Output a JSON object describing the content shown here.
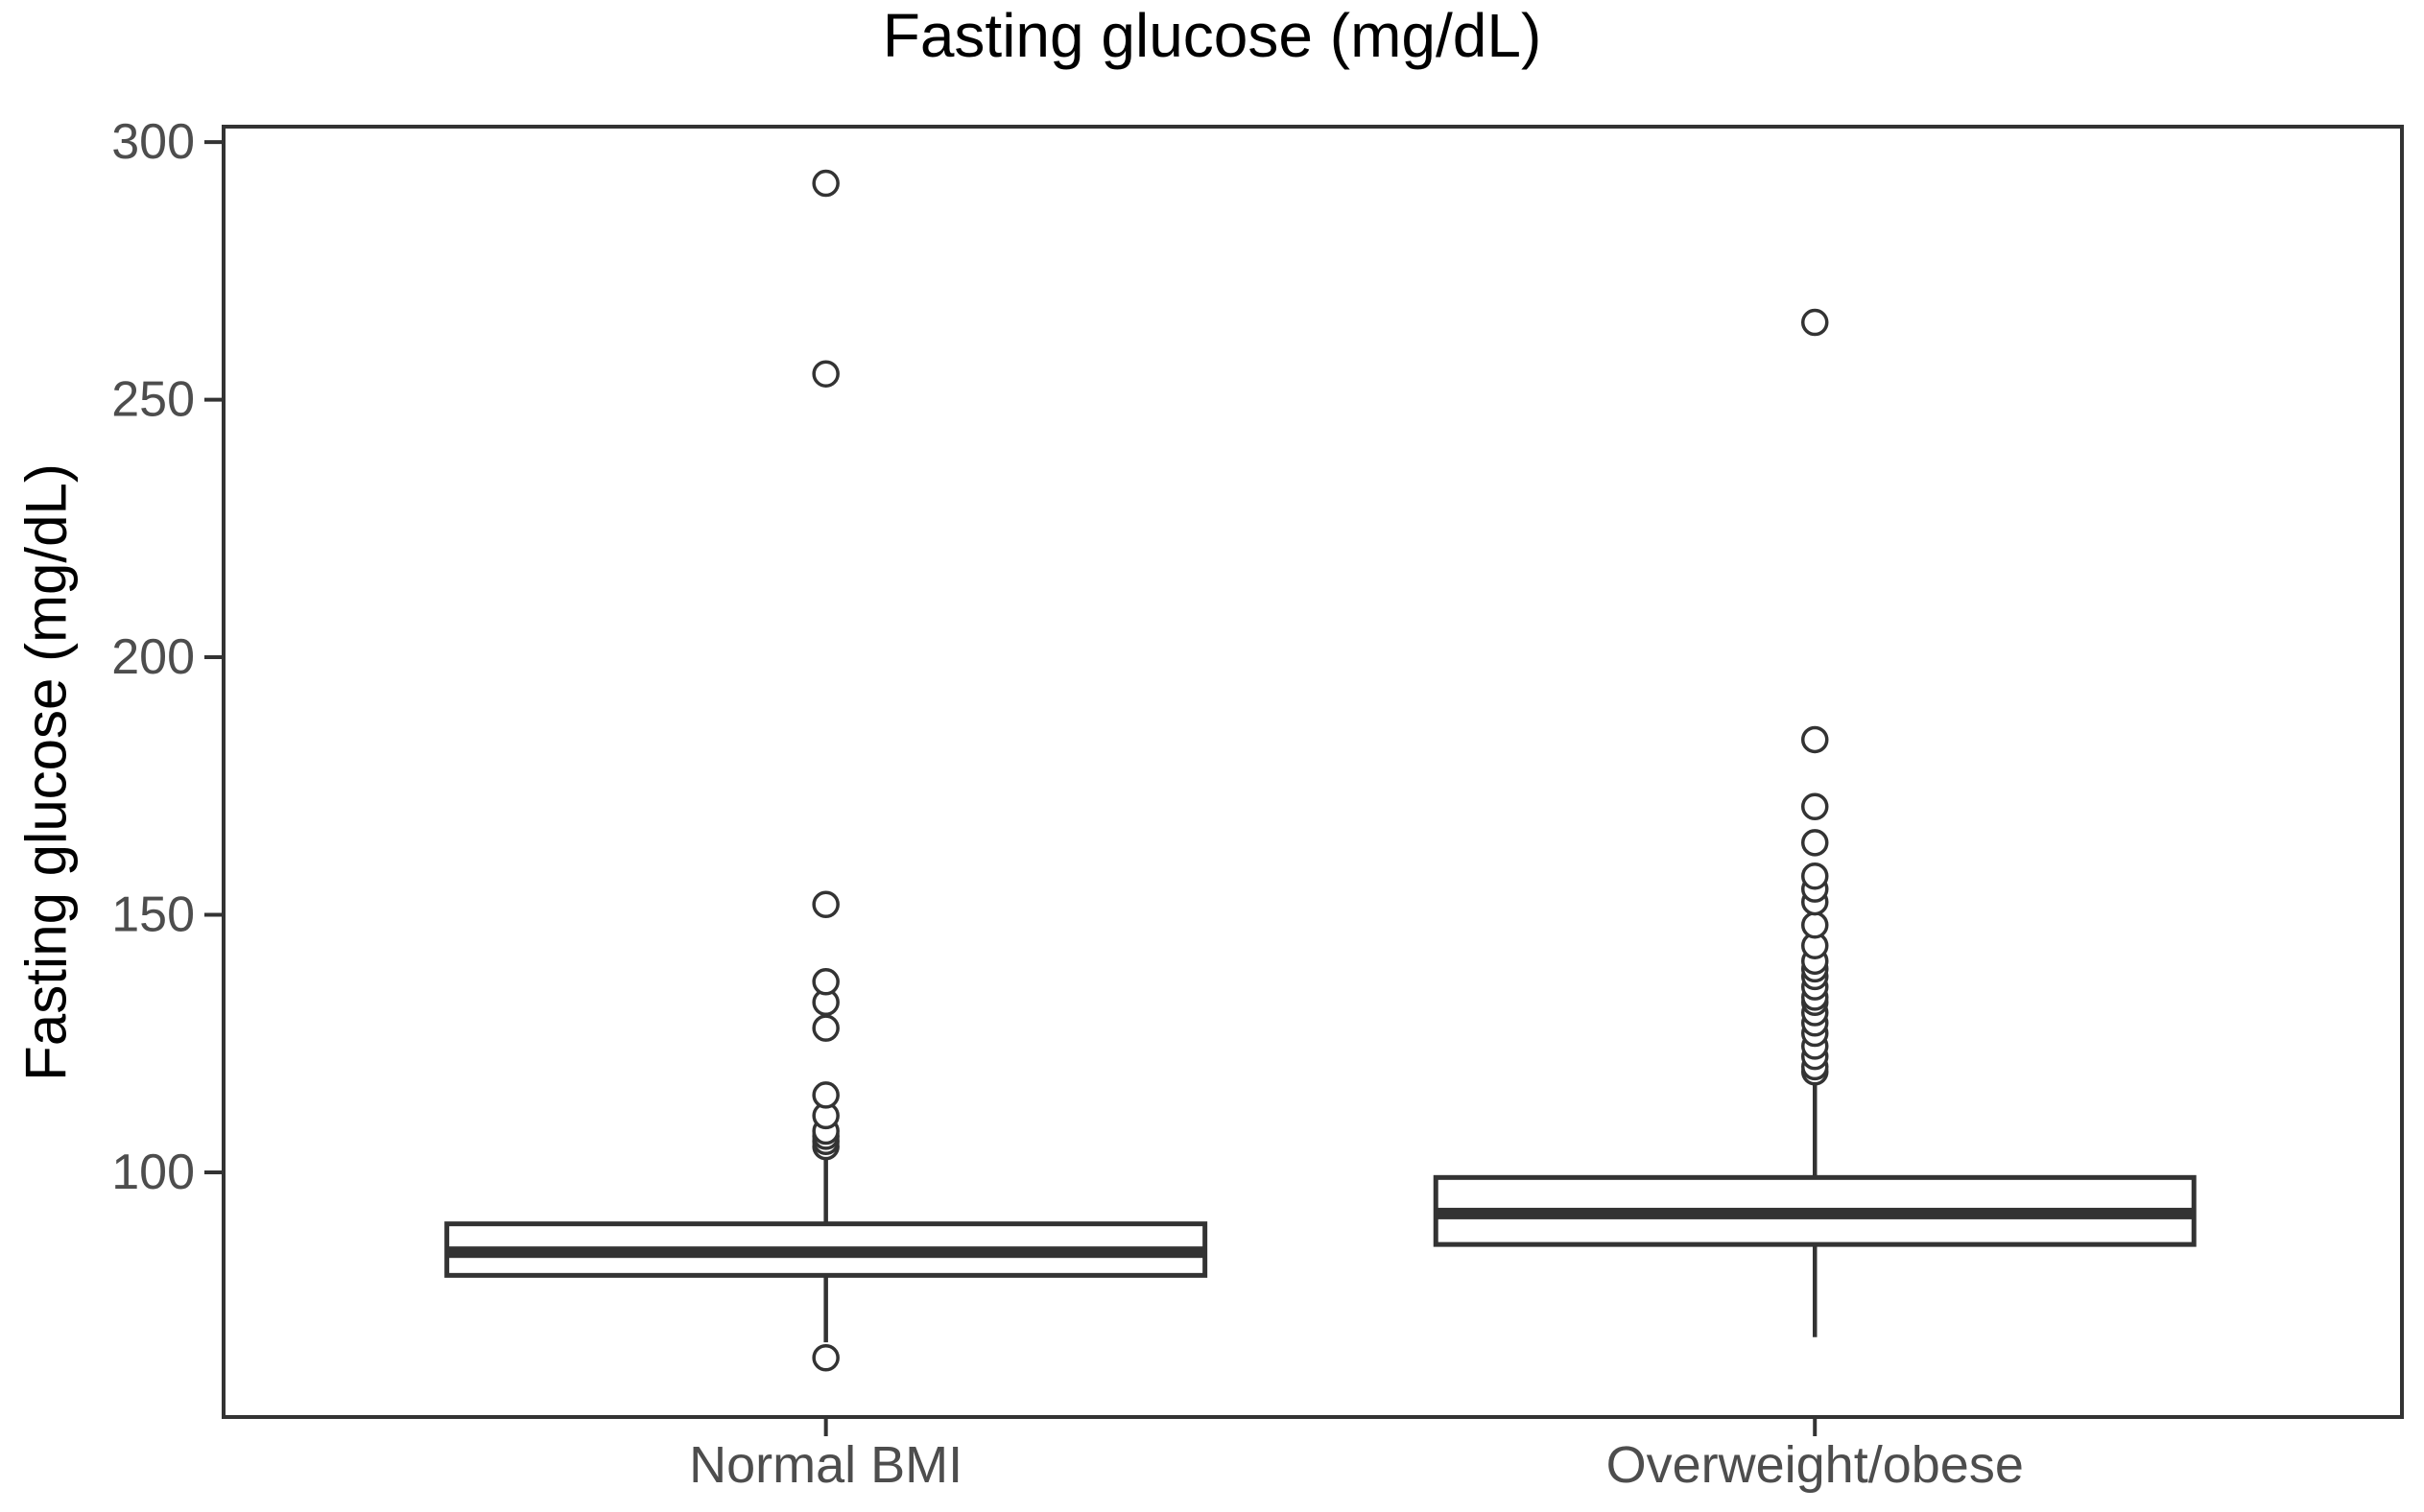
{
  "chart_data": {
    "type": "boxplot",
    "title": "Fasting glucose (mg/dL)",
    "xlabel": "",
    "ylabel": "Fasting glucose (mg/dL)",
    "ylim": [
      52.5,
      303
    ],
    "yticks": [
      "100",
      "150",
      "200",
      "250",
      "300"
    ],
    "ytick_values": [
      100,
      150,
      200,
      250,
      300
    ],
    "grid": false,
    "legend": "none",
    "orientation": "vertical",
    "categories": [
      "Normal BMI",
      "Overweight/obese"
    ],
    "series": [
      {
        "name": "Normal BMI",
        "q1": 80,
        "median": 84.5,
        "q3": 90,
        "whisker_low": 67,
        "whisker_high": 104,
        "outliers": [
          64,
          105,
          106,
          107,
          108,
          111,
          115,
          128,
          133,
          137,
          152,
          255,
          292
        ]
      },
      {
        "name": "Overweight/obese",
        "q1": 86,
        "median": 92,
        "q3": 99,
        "whisker_low": 68,
        "whisker_high": 118,
        "outliers": [
          119.5,
          120.5,
          122.5,
          124.5,
          127,
          129,
          131,
          133,
          134,
          136,
          138,
          139.5,
          141,
          144,
          148,
          152.5,
          155,
          157.5,
          164,
          171,
          184,
          265
        ]
      }
    ],
    "colors": {
      "box_line": "#333333",
      "axis_line": "#333333",
      "tick_label": "#4d4d4d",
      "title": "#000000",
      "box_fill": "#ffffff",
      "background": "#ffffff"
    }
  }
}
